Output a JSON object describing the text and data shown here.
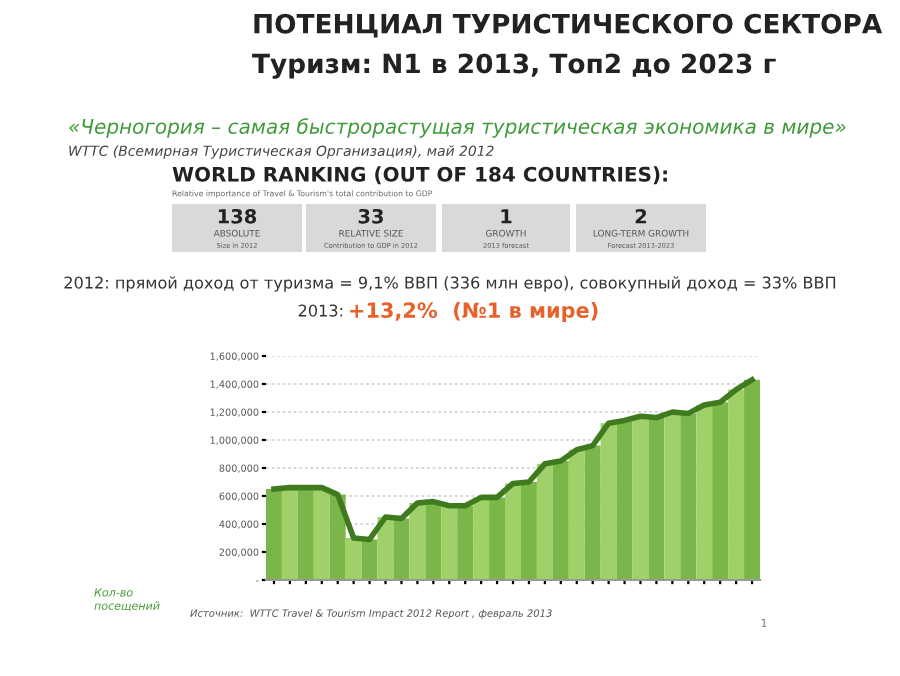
{
  "chart_data": {
    "type": "bar",
    "title": "ПОТЕНЦИАЛ ТУРИСТИЧЕСКОГО СЕКТОРА",
    "subtitle": "Туризм: N1 в 2013, Топ2 до 2023 г",
    "ylabel": "Кол-во\nпосещений",
    "categories": [
      null,
      null,
      null,
      null,
      null,
      null,
      null,
      null,
      null,
      null,
      null,
      null,
      null,
      null,
      null,
      null,
      null,
      null,
      null,
      null,
      null,
      null,
      null,
      null,
      null,
      null,
      null,
      null,
      null,
      null,
      null
    ],
    "series": [
      {
        "colors": [
          "#7ab648",
          "#9fd06a",
          "#7ab648",
          "#9fd06a",
          "#7ab648",
          "#9fd06a",
          "#7ab648",
          "#9fd06a",
          "#7ab648",
          "#9fd06a",
          "#7ab648",
          "#9fd06a",
          "#7ab648",
          "#9fd06a",
          "#7ab648",
          "#9fd06a",
          "#7ab648",
          "#9fd06a",
          "#7ab648",
          "#9fd06a",
          "#7ab648",
          "#9fd06a",
          "#7ab648",
          "#9fd06a",
          "#7ab648",
          "#9fd06a",
          "#7ab648",
          "#9fd06a",
          "#7ab648",
          "#9fd06a",
          "#7ab648"
        ],
        "values": [
          650000,
          660000,
          660000,
          660000,
          610000,
          300000,
          290000,
          450000,
          440000,
          550000,
          560000,
          530000,
          530000,
          590000,
          590000,
          690000,
          700000,
          830000,
          850000,
          930000,
          960000,
          1120000,
          1140000,
          1170000,
          1160000,
          1200000,
          1190000,
          1250000,
          1270000,
          1360000,
          1430000
        ]
      },
      {
        "type": "line",
        "color": "#3f7a1f",
        "values": [
          650000,
          660000,
          660000,
          660000,
          610000,
          300000,
          290000,
          450000,
          440000,
          550000,
          560000,
          530000,
          530000,
          590000,
          590000,
          690000,
          700000,
          830000,
          850000,
          930000,
          960000,
          1120000,
          1140000,
          1170000,
          1160000,
          1200000,
          1190000,
          1250000,
          1270000,
          1360000,
          1430000
        ]
      }
    ],
    "ylim": [
      0,
      1600000
    ],
    "yticks": [
      {
        "value": 0,
        "label": "-"
      },
      {
        "value": 200000,
        "label": "200,000"
      },
      {
        "value": 400000,
        "label": "400,000"
      },
      {
        "value": 600000,
        "label": "600,000"
      },
      {
        "value": 800000,
        "label": "800,000"
      },
      {
        "value": 1000000,
        "label": "1,000,000"
      },
      {
        "value": 1200000,
        "label": "1,200,000"
      },
      {
        "value": 1400000,
        "label": "1,400,000"
      },
      {
        "value": 1600000,
        "label": "1,600,000"
      }
    ],
    "grid": "y",
    "annotations": [
      "«Черногория – самая быстрорастущая туристическая экономика в мире»",
      "WTTC (Всемирная Туристическая Организация), май 2012",
      "WORLD RANKING (OUT OF 184 COUNTRIES):",
      "Relative importance of Travel & Tourism's total contribution to GDP",
      "138",
      "ABSOLUTE",
      "Size in 2012",
      "33",
      "RELATIVE SIZE",
      "Contribution to GDP in 2012",
      "1",
      "GROWTH",
      "2013 forecast",
      "2",
      "LONG-TERM GROWTH",
      "Forecast 2013-2023",
      "2012: прямой доход от туризма = 9,1% ВВП (336 млн евро), совокупный доход = 33% ВВП",
      "2013:",
      "+13,2%  (№1 в мире)",
      "Источник:  WTTC Travel & Tourism Impact 2012 Report , февраль 2013",
      "1"
    ]
  }
}
